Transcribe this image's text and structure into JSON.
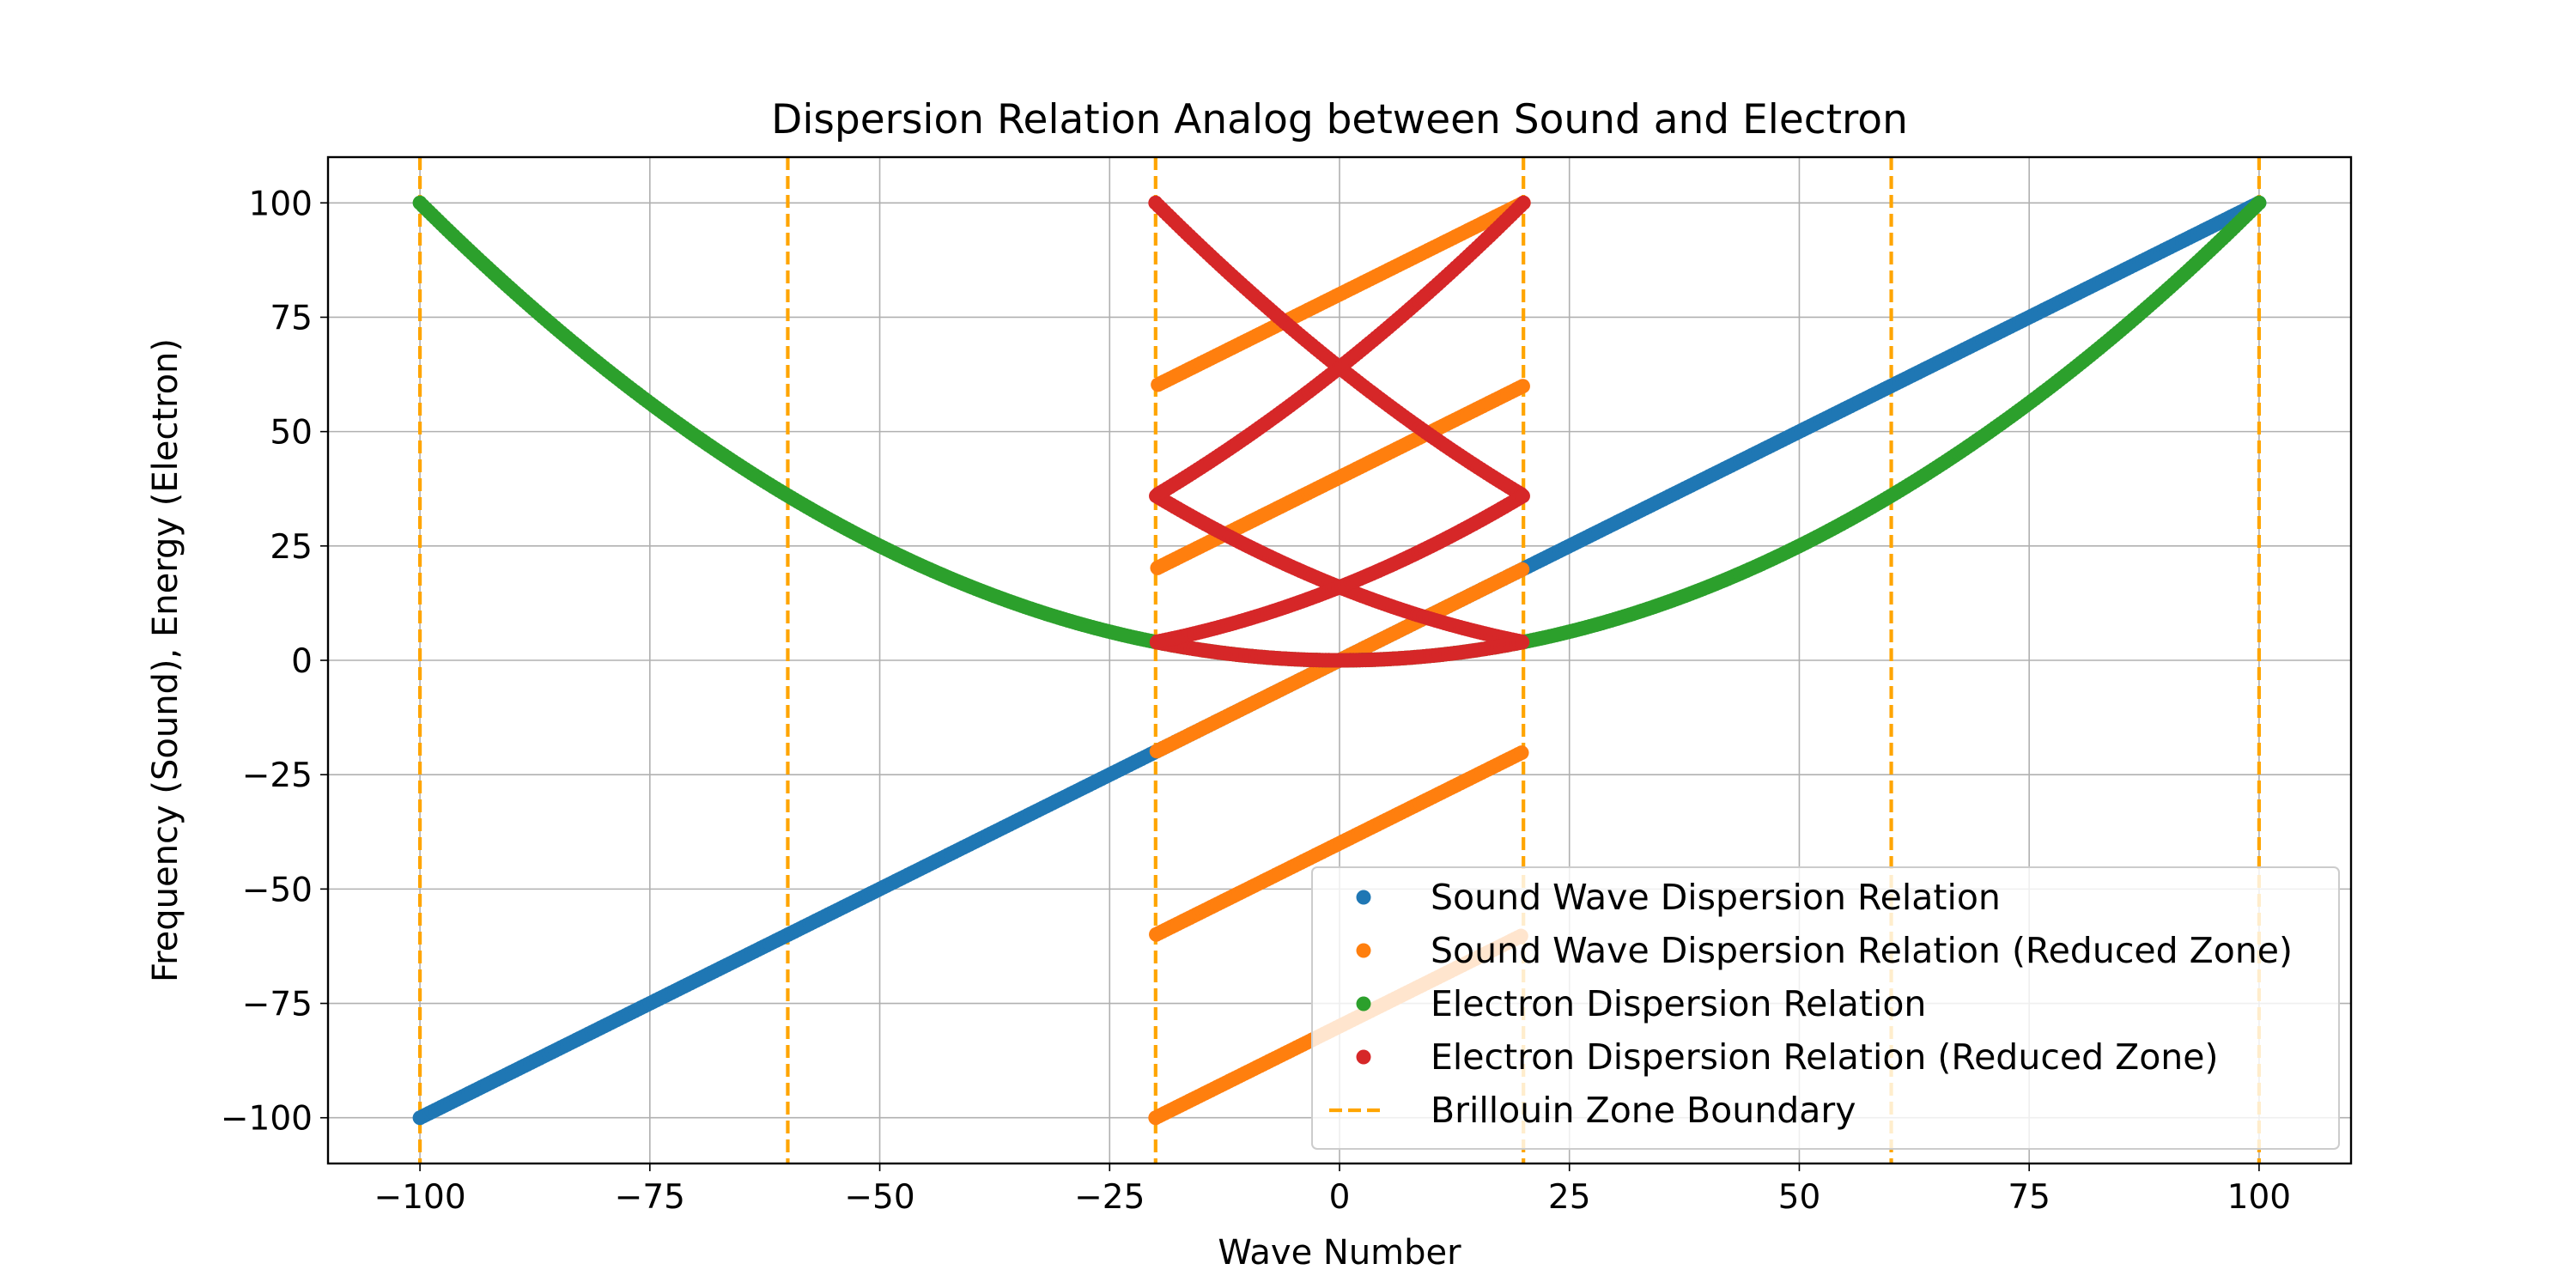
{
  "chart_data": {
    "type": "scatter",
    "title": "Dispersion Relation Analog between Sound and Electron",
    "xlabel": "Wave Number",
    "ylabel": "Frequency (Sound), Energy (Electron)",
    "xlim": [
      -110,
      110
    ],
    "ylim": [
      -110,
      110
    ],
    "xticks": [
      -100,
      -75,
      -50,
      -25,
      0,
      25,
      50,
      75,
      100
    ],
    "yticks": [
      -100,
      -75,
      -50,
      -25,
      0,
      25,
      50,
      75,
      100
    ],
    "xtick_labels": [
      "−100",
      "−75",
      "−50",
      "−25",
      "0",
      "25",
      "50",
      "75",
      "100"
    ],
    "ytick_labels": [
      "−100",
      "−75",
      "−50",
      "−25",
      "0",
      "25",
      "50",
      "75",
      "100"
    ],
    "grid": true,
    "legend_position": "lower-right",
    "brillouin_zone_width": 40,
    "wave_number_range": [
      -100,
      100
    ],
    "series": [
      {
        "name": "Sound Wave Dispersion Relation",
        "kind": "points",
        "relation": "omega = k",
        "x_range": [
          -100,
          100
        ],
        "color": "#1f77b4"
      },
      {
        "name": "Sound Wave Dispersion Relation (Reduced Zone)",
        "kind": "points",
        "relation": "omega = k, plotted at k folded into [-20, 20]",
        "x_range": [
          -20,
          20
        ],
        "color": "#ff7f0e"
      },
      {
        "name": "Electron Dispersion Relation",
        "kind": "points",
        "relation": "E = k^2 / 100",
        "x_range": [
          -100,
          100
        ],
        "color": "#2ca02c"
      },
      {
        "name": "Electron Dispersion Relation (Reduced Zone)",
        "kind": "points",
        "relation": "E = k^2 / 100, plotted at k folded into [-20, 20]",
        "x_range": [
          -20,
          20
        ],
        "color": "#d62728"
      },
      {
        "name": "Brillouin Zone Boundary",
        "kind": "vlines",
        "x": [
          -100,
          -60,
          -20,
          20,
          60,
          100
        ],
        "color": "#ffa500",
        "linestyle": "dashed"
      }
    ]
  }
}
